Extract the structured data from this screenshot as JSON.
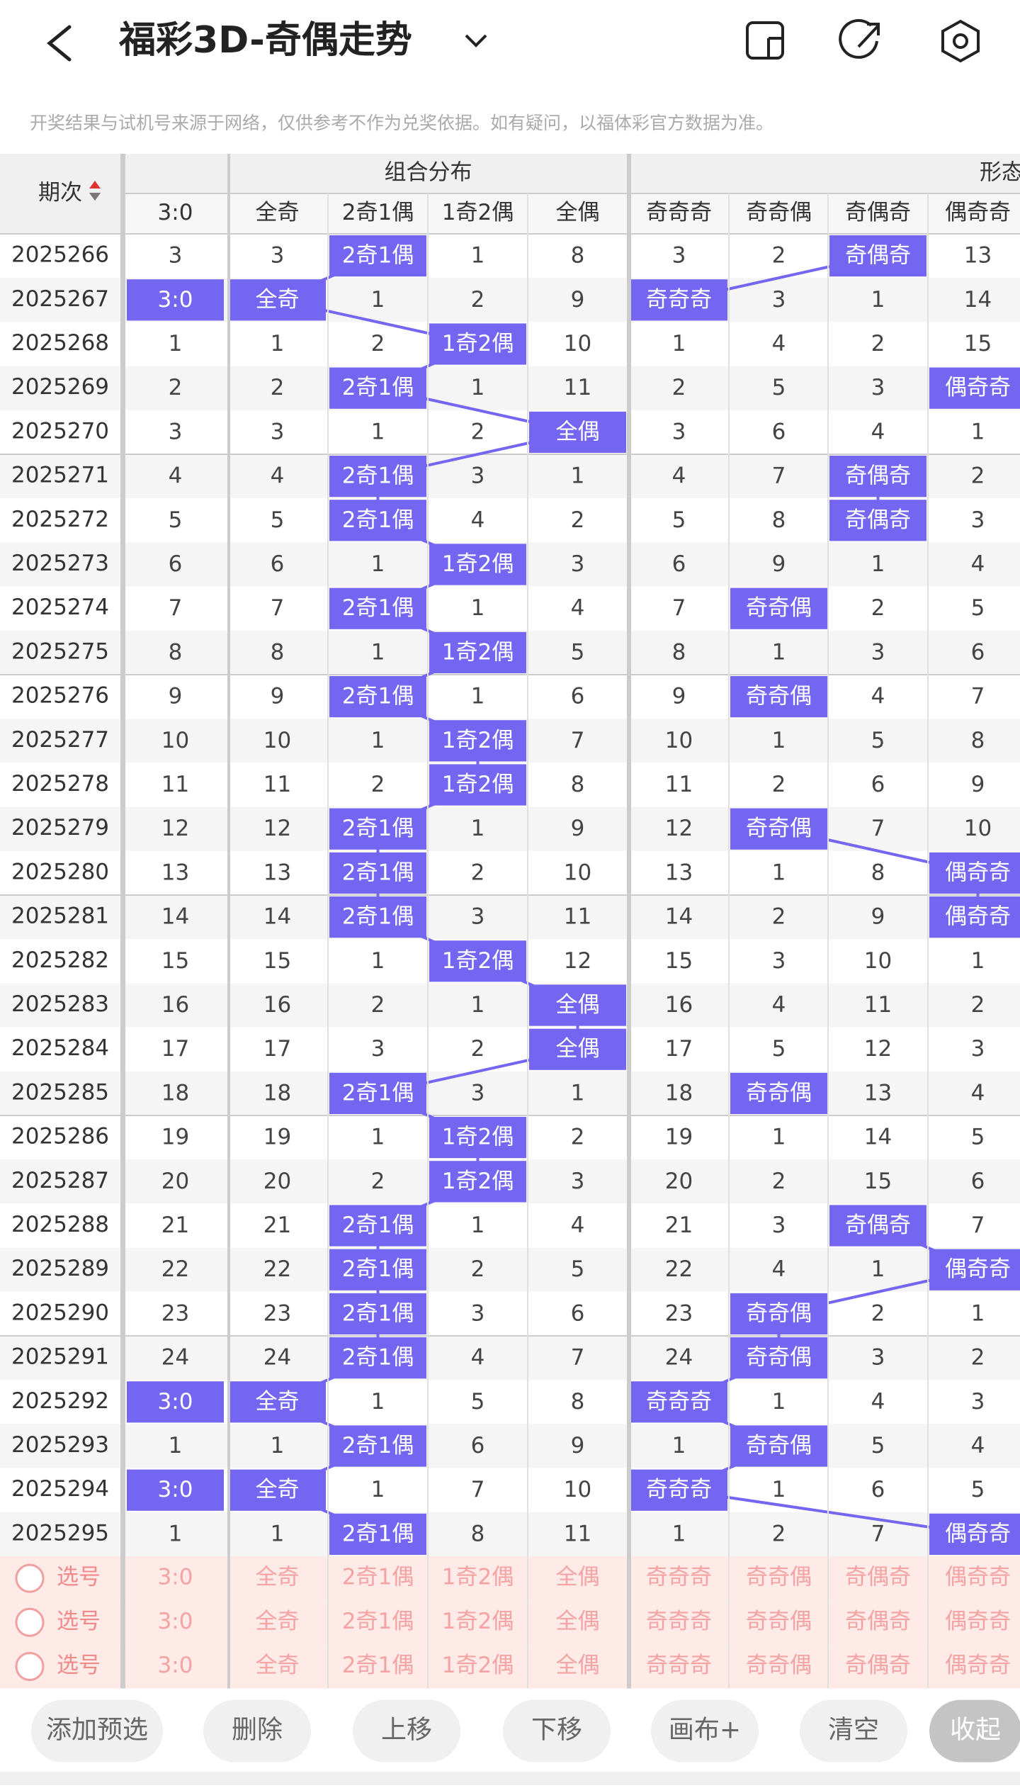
{
  "header": {
    "title": "福彩3D-奇偶走势",
    "notice": "开奖结果与试机号来源于网络，仅供参考不作为兑奖依据。如有疑问，以福体彩官方数据为准。"
  },
  "table": {
    "period_header": "期次",
    "groups": [
      "组合分布",
      "形态"
    ],
    "columns": [
      "3:0",
      "全奇",
      "2奇1偶",
      "1奇2偶",
      "全偶",
      "奇奇奇",
      "奇奇偶",
      "奇偶奇",
      "偶奇奇"
    ],
    "rows": [
      {
        "period": "2025266",
        "cells": [
          3,
          3,
          "2奇1偶",
          1,
          8,
          3,
          2,
          "奇偶奇",
          13
        ]
      },
      {
        "period": "2025267",
        "cells": [
          "3:0",
          "全奇",
          1,
          2,
          9,
          "奇奇奇",
          3,
          1,
          14
        ]
      },
      {
        "period": "2025268",
        "cells": [
          1,
          1,
          2,
          "1奇2偶",
          10,
          1,
          4,
          2,
          15
        ]
      },
      {
        "period": "2025269",
        "cells": [
          2,
          2,
          "2奇1偶",
          1,
          11,
          2,
          5,
          3,
          "偶奇奇"
        ]
      },
      {
        "period": "2025270",
        "cells": [
          3,
          3,
          1,
          2,
          "全偶",
          3,
          6,
          4,
          1
        ]
      },
      {
        "period": "2025271",
        "cells": [
          4,
          4,
          "2奇1偶",
          3,
          1,
          4,
          7,
          "奇偶奇",
          2
        ]
      },
      {
        "period": "2025272",
        "cells": [
          5,
          5,
          "2奇1偶",
          4,
          2,
          5,
          8,
          "奇偶奇",
          3
        ]
      },
      {
        "period": "2025273",
        "cells": [
          6,
          6,
          1,
          "1奇2偶",
          3,
          6,
          9,
          1,
          4
        ]
      },
      {
        "period": "2025274",
        "cells": [
          7,
          7,
          "2奇1偶",
          1,
          4,
          7,
          "奇奇偶",
          2,
          5
        ]
      },
      {
        "period": "2025275",
        "cells": [
          8,
          8,
          1,
          "1奇2偶",
          5,
          8,
          1,
          3,
          6
        ]
      },
      {
        "period": "2025276",
        "cells": [
          9,
          9,
          "2奇1偶",
          1,
          6,
          9,
          "奇奇偶",
          4,
          7
        ]
      },
      {
        "period": "2025277",
        "cells": [
          10,
          10,
          1,
          "1奇2偶",
          7,
          10,
          1,
          5,
          8
        ]
      },
      {
        "period": "2025278",
        "cells": [
          11,
          11,
          2,
          "1奇2偶",
          8,
          11,
          2,
          6,
          9
        ]
      },
      {
        "period": "2025279",
        "cells": [
          12,
          12,
          "2奇1偶",
          1,
          9,
          12,
          "奇奇偶",
          7,
          10
        ]
      },
      {
        "period": "2025280",
        "cells": [
          13,
          13,
          "2奇1偶",
          2,
          10,
          13,
          1,
          8,
          "偶奇奇"
        ]
      },
      {
        "period": "2025281",
        "cells": [
          14,
          14,
          "2奇1偶",
          3,
          11,
          14,
          2,
          9,
          "偶奇奇"
        ]
      },
      {
        "period": "2025282",
        "cells": [
          15,
          15,
          1,
          "1奇2偶",
          12,
          15,
          3,
          10,
          1
        ]
      },
      {
        "period": "2025283",
        "cells": [
          16,
          16,
          2,
          1,
          "全偶",
          16,
          4,
          11,
          2
        ]
      },
      {
        "period": "2025284",
        "cells": [
          17,
          17,
          3,
          2,
          "全偶",
          17,
          5,
          12,
          3
        ]
      },
      {
        "period": "2025285",
        "cells": [
          18,
          18,
          "2奇1偶",
          3,
          1,
          18,
          "奇奇偶",
          13,
          4
        ]
      },
      {
        "period": "2025286",
        "cells": [
          19,
          19,
          1,
          "1奇2偶",
          2,
          19,
          1,
          14,
          5
        ]
      },
      {
        "period": "2025287",
        "cells": [
          20,
          20,
          2,
          "1奇2偶",
          3,
          20,
          2,
          15,
          6
        ]
      },
      {
        "period": "2025288",
        "cells": [
          21,
          21,
          "2奇1偶",
          1,
          4,
          21,
          3,
          "奇偶奇",
          7
        ]
      },
      {
        "period": "2025289",
        "cells": [
          22,
          22,
          "2奇1偶",
          2,
          5,
          22,
          4,
          1,
          "偶奇奇"
        ]
      },
      {
        "period": "2025290",
        "cells": [
          23,
          23,
          "2奇1偶",
          3,
          6,
          23,
          "奇奇偶",
          2,
          1
        ]
      },
      {
        "period": "2025291",
        "cells": [
          24,
          24,
          "2奇1偶",
          4,
          7,
          24,
          "奇奇偶",
          3,
          2
        ]
      },
      {
        "period": "2025292",
        "cells": [
          "3:0",
          "全奇",
          1,
          5,
          8,
          "奇奇奇",
          1,
          4,
          3
        ]
      },
      {
        "period": "2025293",
        "cells": [
          1,
          1,
          "2奇1偶",
          6,
          9,
          1,
          "奇奇偶",
          5,
          4
        ]
      },
      {
        "period": "2025294",
        "cells": [
          "3:0",
          "全奇",
          1,
          7,
          10,
          "奇奇奇",
          1,
          6,
          5
        ]
      },
      {
        "period": "2025295",
        "cells": [
          1,
          1,
          "2奇1偶",
          8,
          11,
          1,
          2,
          7,
          "偶奇奇"
        ]
      }
    ],
    "select_rows": [
      {
        "label": "选号",
        "cells": [
          "3:0",
          "全奇",
          "2奇1偶",
          "1奇2偶",
          "全偶",
          "奇奇奇",
          "奇奇偶",
          "奇偶奇",
          "偶奇奇"
        ]
      },
      {
        "label": "选号",
        "cells": [
          "3:0",
          "全奇",
          "2奇1偶",
          "1奇2偶",
          "全偶",
          "奇奇奇",
          "奇奇偶",
          "奇偶奇",
          "偶奇奇"
        ]
      },
      {
        "label": "选号",
        "cells": [
          "3:0",
          "全奇",
          "2奇1偶",
          "1奇2偶",
          "全偶",
          "奇奇奇",
          "奇奇偶",
          "奇偶奇",
          "偶奇奇"
        ]
      }
    ]
  },
  "toolbar": {
    "buttons": [
      "添加预选",
      "删除",
      "上移",
      "下移",
      "画布+",
      "清空",
      "收起"
    ]
  }
}
